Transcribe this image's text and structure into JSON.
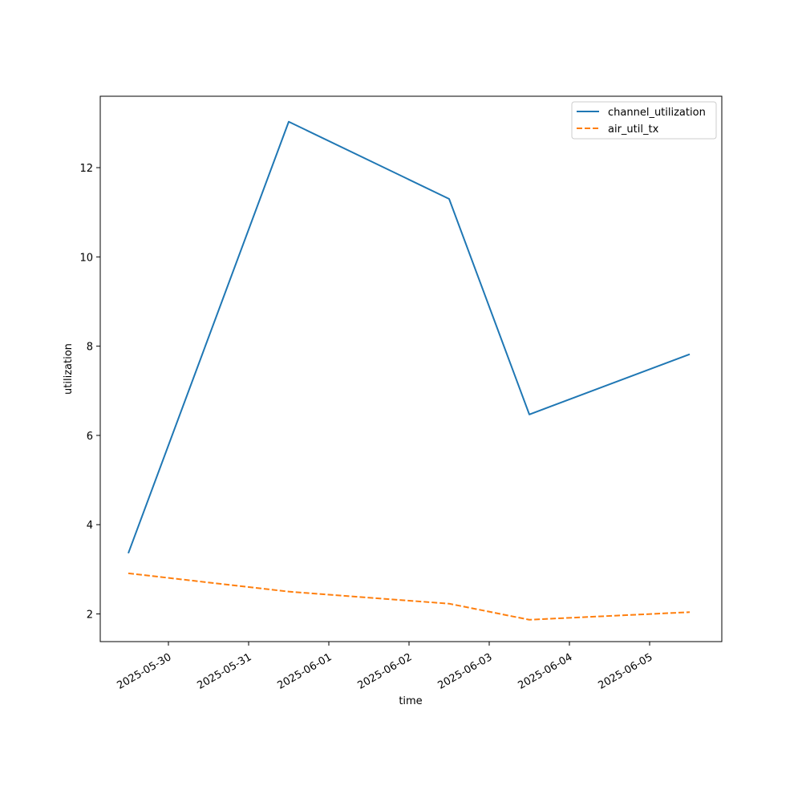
{
  "chart_data": {
    "type": "line",
    "title": "",
    "xlabel": "time",
    "ylabel": "utilization",
    "x": [
      "2025-05-29T12:00",
      "2025-05-31T12:00",
      "2025-06-02T12:00",
      "2025-06-03T12:00",
      "2025-06-05T12:00"
    ],
    "x_tick_labels": [
      "2025-05-30",
      "2025-05-31",
      "2025-06-01",
      "2025-06-02",
      "2025-06-03",
      "2025-06-04",
      "2025-06-05"
    ],
    "xlim": [
      "2025-05-29T03:36",
      "2025-06-05T21:36"
    ],
    "ylim": [
      1.38,
      13.6
    ],
    "y_ticks": [
      2,
      4,
      6,
      8,
      10,
      12
    ],
    "grid": false,
    "legend_position": "top-right",
    "series": [
      {
        "name": "channel_utilization",
        "values": [
          3.36,
          13.03,
          11.3,
          6.47,
          7.82
        ],
        "color": "#1f77b4",
        "linestyle": "solid"
      },
      {
        "name": "air_util_tx",
        "values": [
          2.91,
          2.5,
          2.23,
          1.87,
          2.04
        ],
        "color": "#ff7f0e",
        "linestyle": "dashed"
      }
    ]
  }
}
